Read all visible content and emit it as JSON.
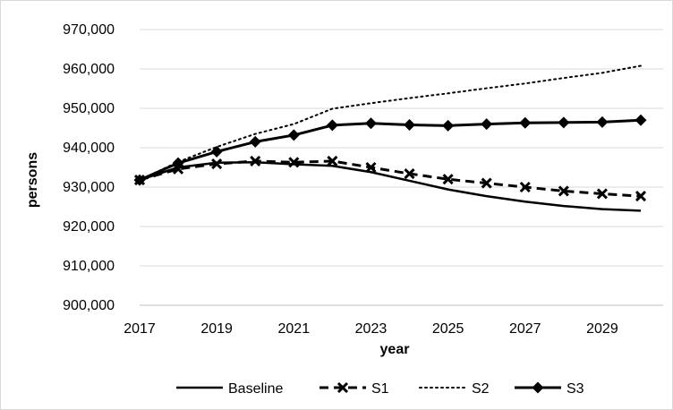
{
  "chart_data": {
    "type": "line",
    "title": "",
    "xlabel": "year",
    "ylabel": "persons",
    "ylim": [
      900000,
      970000
    ],
    "yticks": [
      900000,
      910000,
      920000,
      930000,
      940000,
      950000,
      960000,
      970000
    ],
    "ytick_labels": [
      "900,000",
      "910,000",
      "920,000",
      "930,000",
      "940,000",
      "950,000",
      "960,000",
      "970,000"
    ],
    "xlim": [
      2017,
      2030
    ],
    "xticks": [
      2017,
      2019,
      2021,
      2023,
      2025,
      2027,
      2029
    ],
    "xtick_labels": [
      "2017",
      "2019",
      "2021",
      "2023",
      "2025",
      "2027",
      "2029"
    ],
    "x": [
      2017,
      2018,
      2019,
      2020,
      2021,
      2022,
      2023,
      2024,
      2025,
      2026,
      2027,
      2028,
      2029,
      2030
    ],
    "grid": "horizontal",
    "legend_position": "bottom",
    "series": [
      {
        "name": "Baseline",
        "style": "solid",
        "marker": "none",
        "values": [
          931800,
          935000,
          936200,
          936300,
          935800,
          935400,
          933800,
          931600,
          929400,
          927700,
          926300,
          925200,
          924400,
          924000
        ]
      },
      {
        "name": "S1",
        "style": "dashed",
        "marker": "x",
        "values": [
          931800,
          934600,
          935900,
          936600,
          936300,
          936600,
          935000,
          933400,
          932000,
          931000,
          930000,
          929000,
          928300,
          927700
        ]
      },
      {
        "name": "S2",
        "style": "dotted",
        "marker": "none",
        "values": [
          931800,
          936400,
          940200,
          943500,
          946000,
          949900,
          951300,
          952600,
          953800,
          955100,
          956300,
          957700,
          959000,
          960800
        ]
      },
      {
        "name": "S3",
        "style": "solid",
        "marker": "diamond",
        "values": [
          931800,
          936100,
          939000,
          941500,
          943200,
          945700,
          946200,
          945800,
          945600,
          946000,
          946300,
          946400,
          946500,
          947000
        ]
      }
    ]
  }
}
